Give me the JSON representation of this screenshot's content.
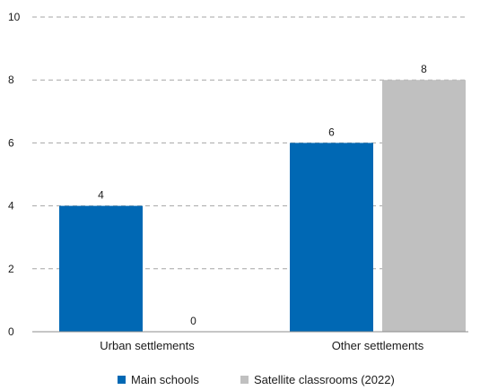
{
  "chart_data": {
    "type": "bar",
    "categories": [
      "Urban settlements",
      "Other settlements"
    ],
    "series": [
      {
        "name": "Main schools",
        "values": [
          4,
          6
        ],
        "color": "#0068b4"
      },
      {
        "name": "Satellite classrooms (2022)",
        "values": [
          0,
          8
        ],
        "color": "#c0c0c0"
      }
    ],
    "ylim": [
      0,
      10
    ],
    "yticks": [
      0,
      2,
      4,
      6,
      8,
      10
    ],
    "grid": true,
    "legend_position": "bottom"
  }
}
